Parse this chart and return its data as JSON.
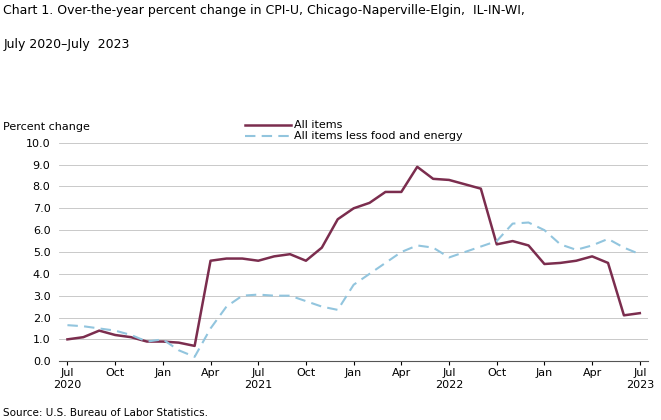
{
  "title_line1": "Chart 1. Over-the-year percent change in CPI-U, Chicago-Naperville-Elgin,  IL-IN-WI,",
  "title_line2": "July 2020–July  2023",
  "ylabel": "Percent change",
  "source": "Source: U.S. Bureau of Labor Statistics.",
  "legend_all_items": "All items",
  "legend_core": "All items less food and energy",
  "all_items_color": "#7B2D4E",
  "core_color": "#92C5DE",
  "ylim": [
    0.0,
    10.0
  ],
  "yticks": [
    0.0,
    1.0,
    2.0,
    3.0,
    4.0,
    5.0,
    6.0,
    7.0,
    8.0,
    9.0,
    10.0
  ],
  "x_tick_pos": [
    0,
    3,
    6,
    9,
    12,
    15,
    18,
    21,
    24,
    27,
    30,
    33,
    36
  ],
  "x_tick_labels": [
    "Jul\n2020",
    "Oct",
    "Jan",
    "Apr",
    "Jul\n2021",
    "Oct",
    "Jan",
    "Apr",
    "Jul\n2022",
    "Oct",
    "Jan",
    "Apr",
    "Jul\n2023"
  ],
  "all_items_monthly": [
    1.0,
    1.1,
    1.4,
    1.2,
    1.1,
    0.9,
    0.9,
    0.85,
    0.7,
    4.6,
    4.7,
    4.7,
    4.6,
    4.8,
    4.9,
    4.6,
    5.2,
    6.5,
    7.0,
    7.25,
    7.75,
    7.75,
    8.9,
    8.35,
    8.3,
    8.1,
    7.9,
    5.35,
    5.5,
    5.3,
    4.45,
    4.5,
    4.6,
    4.8,
    4.5,
    2.1,
    2.2
  ],
  "core_monthly": [
    1.65,
    1.6,
    1.5,
    1.4,
    1.2,
    0.9,
    1.0,
    0.5,
    0.2,
    1.5,
    2.5,
    3.0,
    3.05,
    3.0,
    3.0,
    2.75,
    2.5,
    2.35,
    3.5,
    4.0,
    4.5,
    5.0,
    5.3,
    5.2,
    4.75,
    5.0,
    5.25,
    5.5,
    6.3,
    6.35,
    6.0,
    5.35,
    5.1,
    5.3,
    5.6,
    5.2,
    4.9
  ]
}
